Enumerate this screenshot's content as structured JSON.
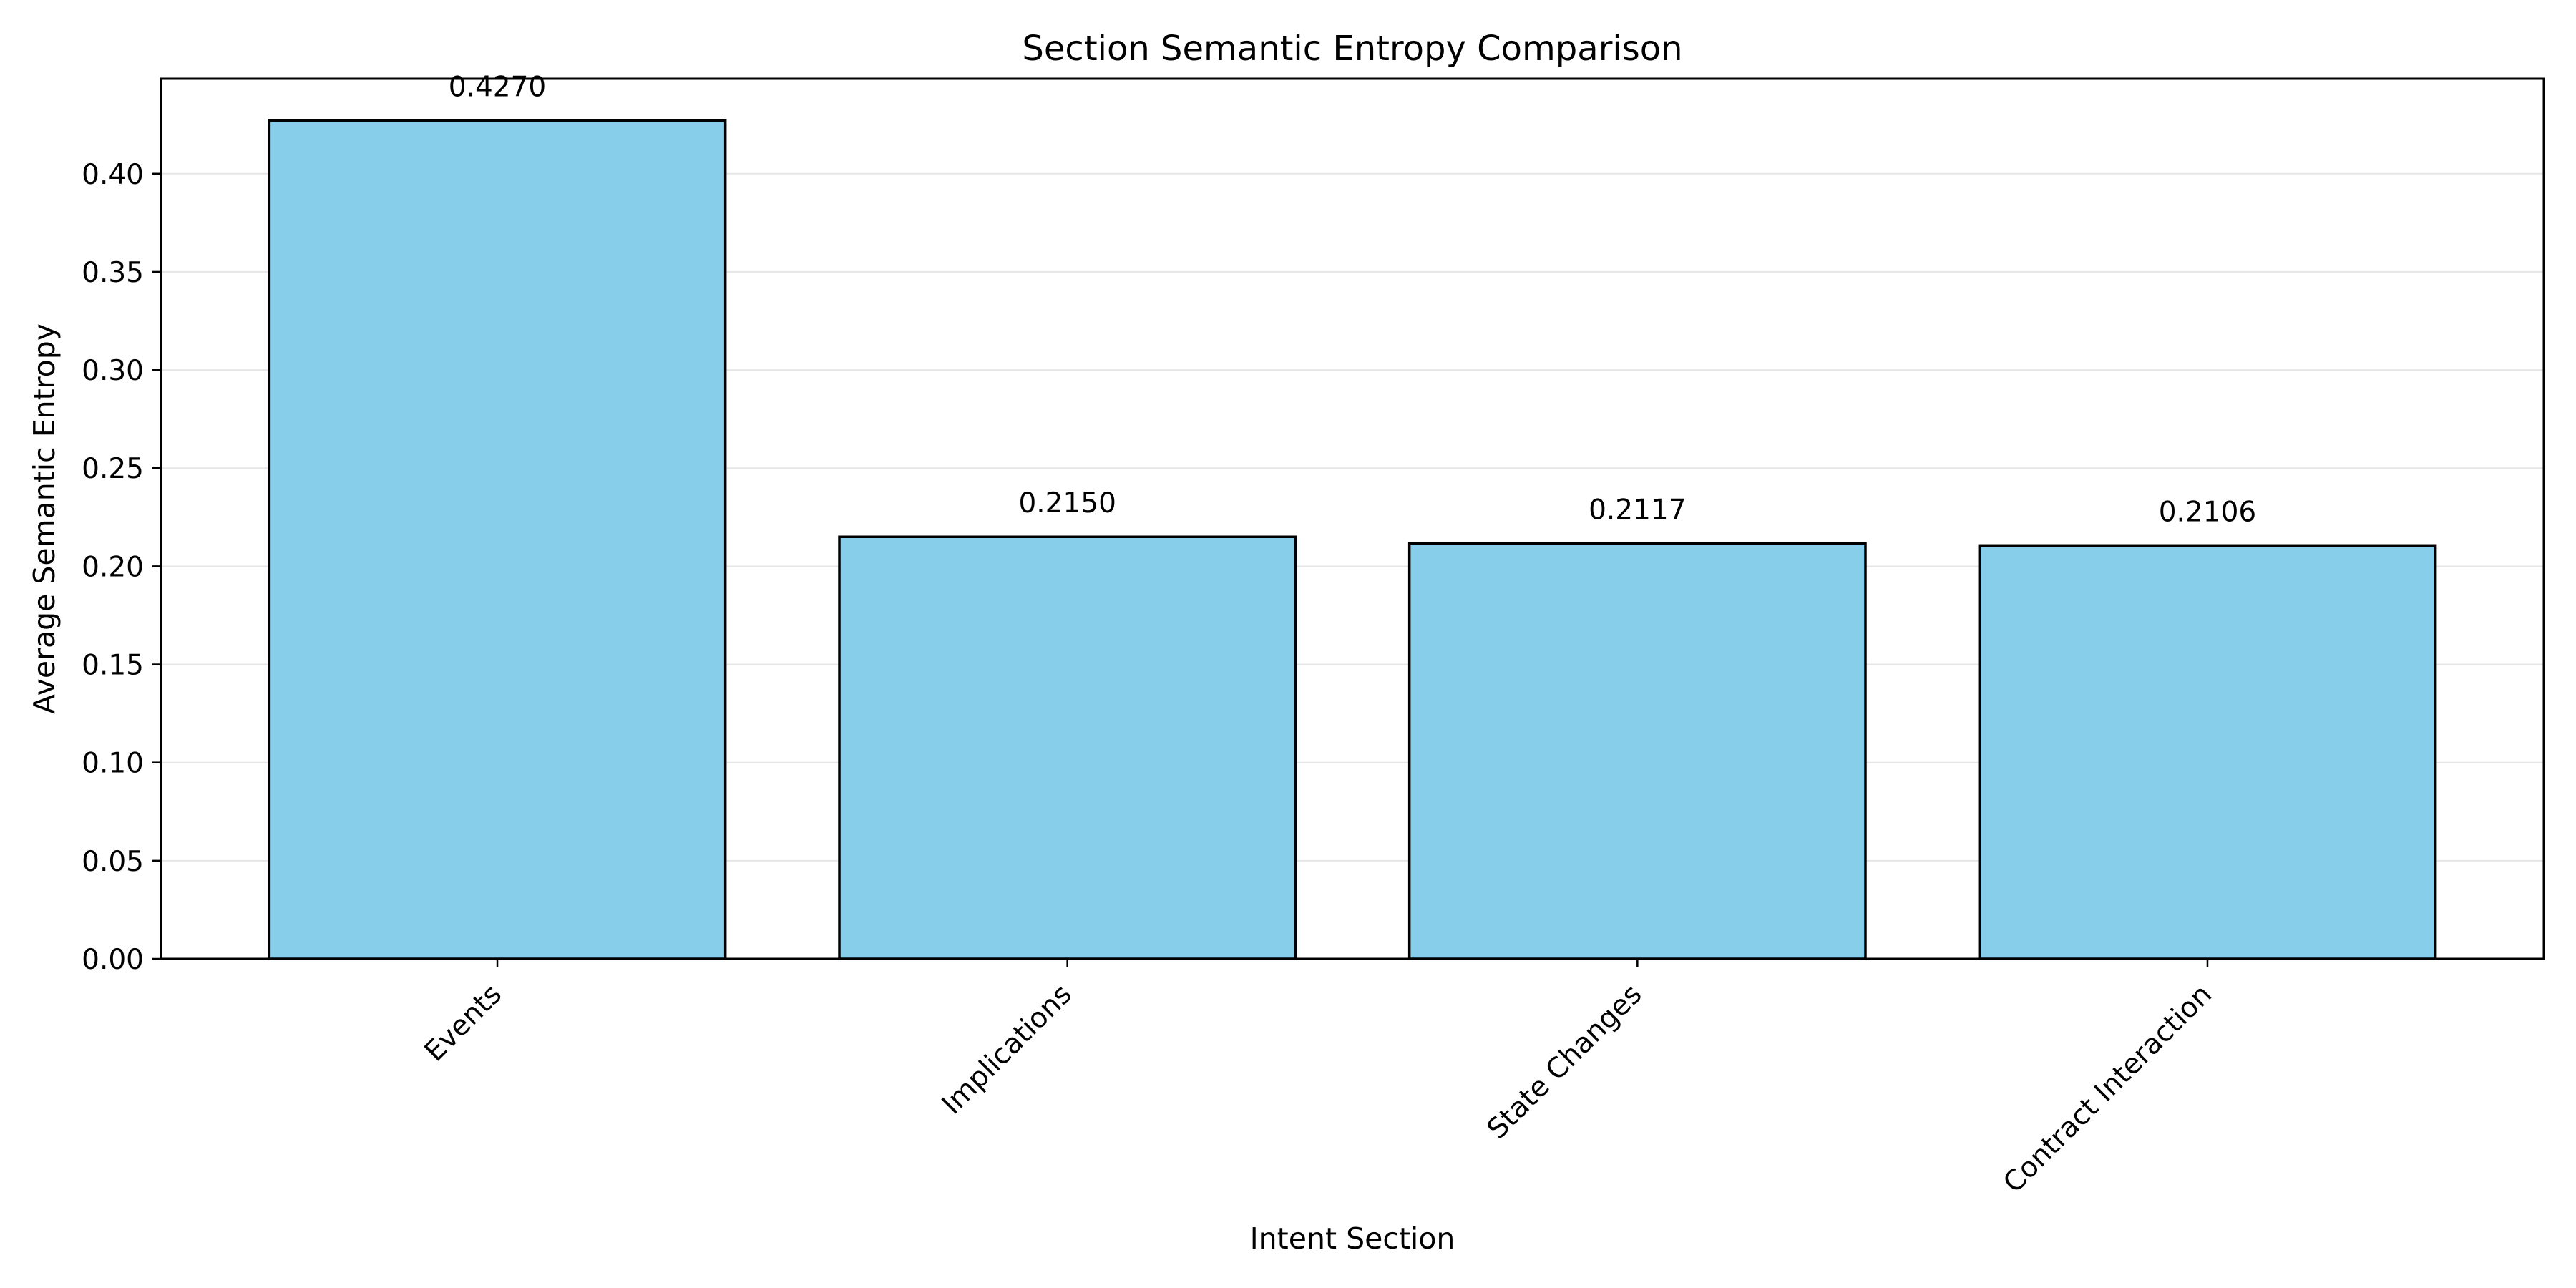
{
  "chart_data": {
    "type": "bar",
    "title": "Section Semantic Entropy Comparison",
    "xlabel": "Intent Section",
    "ylabel": "Average Semantic Entropy",
    "categories": [
      "Events",
      "Implications",
      "State Changes",
      "Contract Interaction"
    ],
    "values": [
      0.427,
      0.215,
      0.2117,
      0.2106
    ],
    "value_labels": [
      "0.4270",
      "0.2150",
      "0.2117",
      "0.2106"
    ],
    "ylim": [
      0,
      0.4484
    ],
    "yticks": [
      0.0,
      0.05,
      0.1,
      0.15,
      0.2,
      0.25,
      0.3,
      0.35,
      0.4
    ],
    "ytick_labels": [
      "0.00",
      "0.05",
      "0.10",
      "0.15",
      "0.20",
      "0.25",
      "0.30",
      "0.35",
      "0.40"
    ],
    "grid": "y",
    "bar_color": "#87ceeb",
    "bar_edge_color": "#000000",
    "grid_color": "#e6e6e6"
  }
}
